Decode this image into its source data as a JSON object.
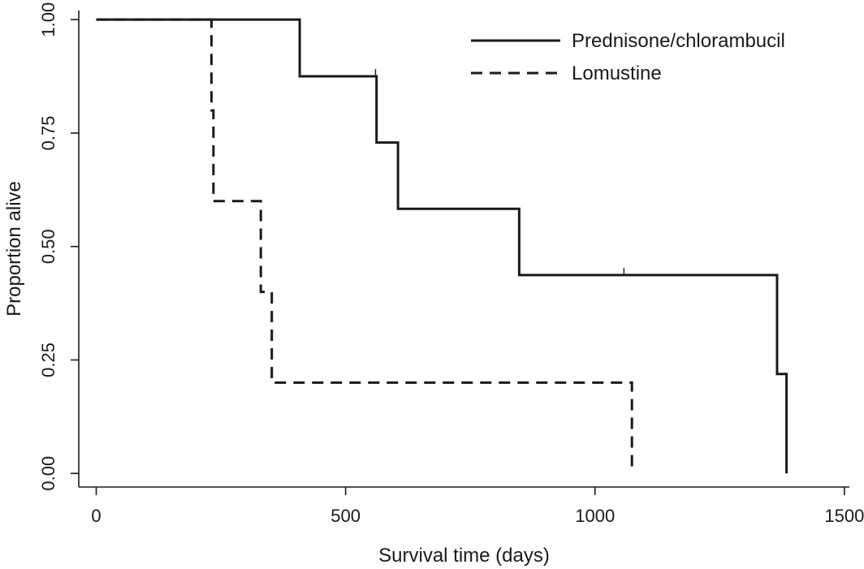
{
  "chart_data": {
    "type": "line",
    "title": "",
    "xlabel": "Survival time (days)",
    "ylabel": "Proportion alive",
    "xlim": [
      -35,
      1510
    ],
    "ylim": [
      -0.03,
      1.02
    ],
    "x_ticks": [
      0,
      500,
      1000,
      1500
    ],
    "x_tick_labels": [
      "0",
      "500",
      "1000",
      "1500"
    ],
    "y_ticks": [
      0,
      0.25,
      0.5,
      0.75,
      1.0
    ],
    "y_tick_labels": [
      "0.00",
      "0.25",
      "0.50",
      "0.75",
      "1.00"
    ],
    "grid": false,
    "legend_position": "top-right",
    "step": true,
    "series": [
      {
        "name": "Prednisone/chlorambucil",
        "line_style": "solid",
        "color": "#1a1a1a",
        "x": [
          0,
          408,
          562,
          605,
          848,
          1365,
          1384
        ],
        "y": [
          1.0,
          0.875,
          0.729,
          0.583,
          0.437,
          0.219,
          0.0
        ],
        "censored": [
          {
            "x": 560,
            "y": 0.875
          },
          {
            "x": 1058,
            "y": 0.437
          }
        ]
      },
      {
        "name": "Lomustine",
        "line_style": "dashed",
        "color": "#1a1a1a",
        "x": [
          0,
          231,
          235,
          330,
          352,
          1074
        ],
        "y": [
          1.0,
          0.8,
          0.6,
          0.4,
          0.2,
          0.0
        ],
        "censored": []
      }
    ]
  }
}
